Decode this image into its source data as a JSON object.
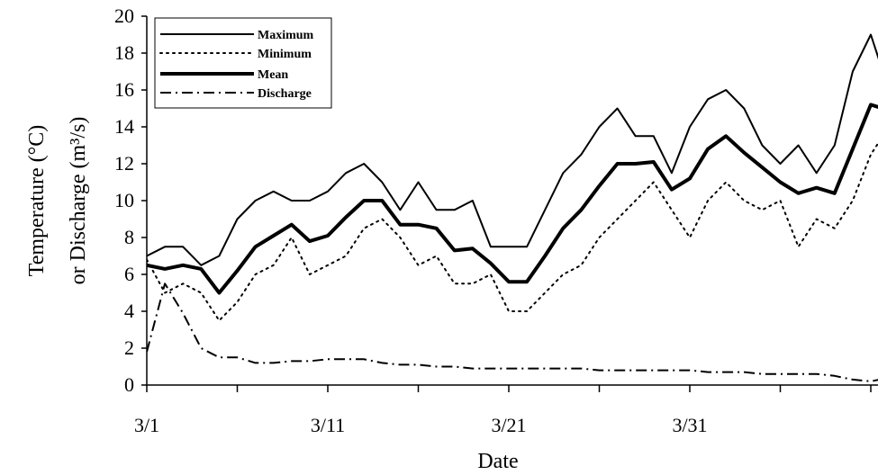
{
  "chart_data": {
    "type": "line",
    "xlabel": "Date",
    "ylabel_line1": "Temperature (°C)",
    "ylabel_line2": "or Discharge (m³/s)",
    "xlim": [
      "3/1",
      "4/11"
    ],
    "ylim": [
      0,
      20
    ],
    "y_ticks": [
      0,
      2,
      4,
      6,
      8,
      10,
      12,
      14,
      16,
      18,
      20
    ],
    "x_tick_labels": [
      {
        "day": 0,
        "label": "3/1"
      },
      {
        "day": 10,
        "label": "3/11"
      },
      {
        "day": 20,
        "label": "3/21"
      },
      {
        "day": 30,
        "label": "3/31"
      }
    ],
    "x_minor_ticks_days": [
      0,
      5,
      10,
      15,
      20,
      25,
      30,
      35,
      40
    ],
    "grid": false,
    "legend_position": "top-left",
    "x": [
      "3/1",
      "3/2",
      "3/3",
      "3/4",
      "3/5",
      "3/6",
      "3/7",
      "3/8",
      "3/9",
      "3/10",
      "3/11",
      "3/12",
      "3/13",
      "3/14",
      "3/15",
      "3/16",
      "3/17",
      "3/18",
      "3/19",
      "3/20",
      "3/21",
      "3/22",
      "3/23",
      "3/24",
      "3/25",
      "3/26",
      "3/27",
      "3/28",
      "3/29",
      "3/30",
      "3/31",
      "4/1",
      "4/2",
      "4/3",
      "4/4",
      "4/5",
      "4/6",
      "4/7",
      "4/8",
      "4/9",
      "4/10",
      "4/11"
    ],
    "series": [
      {
        "name": "Maximum",
        "style": "solid",
        "values": [
          7.0,
          7.5,
          7.5,
          6.5,
          7.0,
          9.0,
          10.0,
          10.5,
          10.0,
          10.0,
          10.5,
          11.5,
          12.0,
          11.0,
          9.5,
          11.0,
          9.5,
          9.5,
          10.0,
          7.5,
          7.5,
          7.5,
          9.5,
          11.5,
          12.5,
          14.0,
          15.0,
          13.5,
          13.5,
          11.5,
          14.0,
          15.5,
          16.0,
          15.0,
          13.0,
          12.0,
          13.0,
          11.5,
          13.0,
          17.0,
          19.0,
          16.0
        ]
      },
      {
        "name": "Minimum",
        "style": "dotted",
        "values": [
          6.8,
          5.0,
          5.5,
          5.0,
          3.5,
          4.5,
          6.0,
          6.5,
          8.0,
          6.0,
          6.5,
          7.0,
          8.5,
          9.0,
          8.0,
          6.5,
          7.0,
          5.5,
          5.5,
          6.0,
          4.0,
          4.0,
          5.0,
          6.0,
          6.5,
          8.0,
          9.0,
          10.0,
          11.0,
          9.5,
          8.0,
          10.0,
          11.0,
          10.0,
          9.5,
          10.0,
          7.5,
          9.0,
          8.5,
          10.0,
          12.5,
          14.0
        ]
      },
      {
        "name": "Mean",
        "style": "thick",
        "values": [
          6.5,
          6.3,
          6.5,
          6.3,
          5.0,
          6.2,
          7.5,
          8.1,
          8.7,
          7.8,
          8.1,
          9.1,
          10.0,
          10.0,
          8.7,
          8.7,
          8.5,
          7.3,
          7.4,
          6.6,
          5.6,
          5.6,
          7.0,
          8.5,
          9.5,
          10.8,
          12.0,
          12.0,
          12.1,
          10.6,
          11.2,
          12.8,
          13.5,
          12.6,
          11.8,
          11.0,
          10.4,
          10.7,
          10.4,
          12.8,
          15.2,
          14.9
        ]
      },
      {
        "name": "Discharge",
        "style": "dashdot",
        "values": [
          1.8,
          5.5,
          3.9,
          2.0,
          1.5,
          1.5,
          1.2,
          1.2,
          1.3,
          1.3,
          1.4,
          1.4,
          1.4,
          1.2,
          1.1,
          1.1,
          1.0,
          1.0,
          0.9,
          0.9,
          0.9,
          0.9,
          0.9,
          0.9,
          0.9,
          0.8,
          0.8,
          0.8,
          0.8,
          0.8,
          0.8,
          0.7,
          0.7,
          0.7,
          0.6,
          0.6,
          0.6,
          0.6,
          0.5,
          0.3,
          0.2,
          0.4
        ]
      }
    ]
  }
}
